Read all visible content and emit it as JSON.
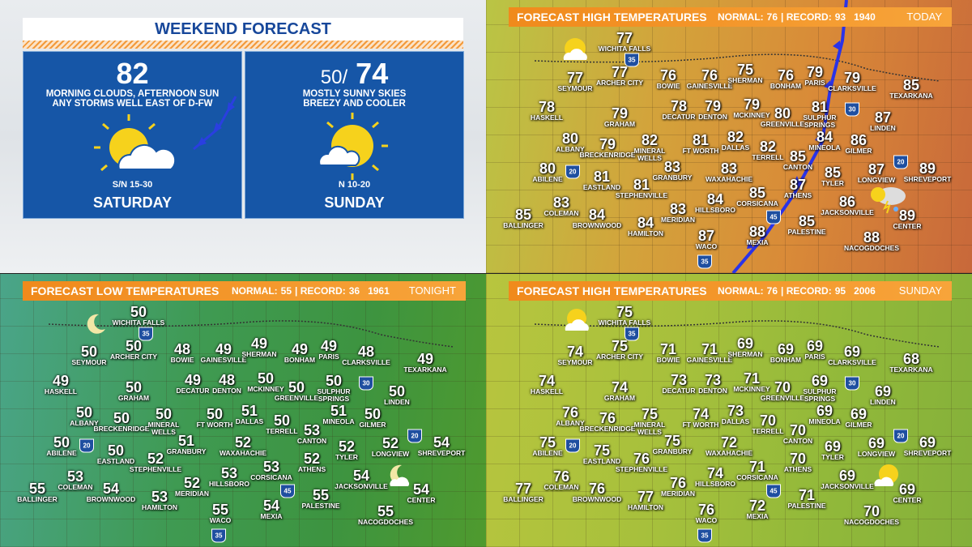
{
  "weekend": {
    "title": "WEEKEND FORECAST",
    "days": [
      {
        "high": 82,
        "description": "MORNING CLOUDS, AFTERNOON SUN\nANY STORMS WELL EAST OF D-FW",
        "wind": "S/N 15-30",
        "day": "SATURDAY"
      },
      {
        "low": 50,
        "separator": "/",
        "high": 74,
        "description": "MOSTLY SUNNY SKIES\nBREEZY AND COOLER",
        "wind": "N 10-20",
        "day": "SUNDAY"
      }
    ]
  },
  "cities": [
    "WICHITA FALLS",
    "SEYMOUR",
    "ARCHER CITY",
    "BOWIE",
    "GAINESVILLE",
    "SHERMAN",
    "BONHAM",
    "PARIS",
    "CLARKSVILLE",
    "TEXARKANA",
    "HASKELL",
    "GRAHAM",
    "DECATUR",
    "DENTON",
    "MCKINNEY",
    "GREENVILLE",
    "SULPHUR\nSPRINGS",
    "LINDEN",
    "ALBANY",
    "BRECKENRIDGE",
    "MINERAL\nWELLS",
    "FT WORTH",
    "DALLAS",
    "TERRELL",
    "MINEOLA",
    "GILMER",
    "CANTON",
    "ABILENE",
    "EASTLAND",
    "GRANBURY",
    "WAXAHACHIE",
    "STEPHENVILLE",
    "TYLER",
    "LONGVIEW",
    "SHREVEPORT",
    "ATHENS",
    "COLEMAN",
    "BROWNWOOD",
    "CORSICANA",
    "HILLSBORO",
    "MERIDIAN",
    "JACKSONVILLE",
    "CENTER",
    "BALLINGER",
    "HAMILTON",
    "PALESTINE",
    "WACO",
    "MEXIA",
    "NACOGDOCHES"
  ],
  "interstates": [
    "35",
    "30",
    "20",
    "20",
    "45",
    "35"
  ],
  "maps": [
    {
      "title": "FORECAST HIGH TEMPERATURES",
      "normal_label": "NORMAL:",
      "normal": 76,
      "record_label": "| RECORD:",
      "record": 93,
      "record_year": 1940,
      "period": "TODAY",
      "temps": [
        77,
        77,
        77,
        76,
        76,
        75,
        76,
        79,
        79,
        85,
        78,
        79,
        78,
        79,
        79,
        80,
        81,
        87,
        80,
        79,
        82,
        81,
        82,
        82,
        84,
        86,
        85,
        80,
        81,
        83,
        83,
        81,
        85,
        87,
        89,
        87,
        83,
        84,
        85,
        84,
        83,
        86,
        89,
        85,
        84,
        85,
        87,
        88,
        88
      ]
    },
    {
      "title": "FORECAST LOW TEMPERATURES",
      "normal_label": "NORMAL:",
      "normal": 55,
      "record_label": "| RECORD:",
      "record": 36,
      "record_year": 1961,
      "period": "TONIGHT",
      "temps": [
        50,
        50,
        50,
        48,
        49,
        49,
        49,
        49,
        48,
        49,
        49,
        50,
        49,
        48,
        50,
        50,
        50,
        50,
        50,
        50,
        50,
        50,
        51,
        50,
        51,
        50,
        53,
        50,
        50,
        51,
        52,
        52,
        52,
        52,
        54,
        52,
        53,
        54,
        53,
        53,
        52,
        54,
        54,
        55,
        53,
        55,
        55,
        54,
        55
      ]
    },
    {
      "title": "FORECAST HIGH TEMPERATURES",
      "normal_label": "NORMAL:",
      "normal": 76,
      "record_label": "| RECORD:",
      "record": 95,
      "record_year": 2006,
      "period": "SUNDAY",
      "temps": [
        75,
        74,
        75,
        71,
        71,
        69,
        69,
        69,
        69,
        68,
        74,
        74,
        73,
        73,
        71,
        70,
        69,
        69,
        76,
        76,
        75,
        74,
        73,
        70,
        69,
        69,
        70,
        75,
        75,
        75,
        72,
        76,
        69,
        69,
        69,
        70,
        76,
        76,
        71,
        74,
        76,
        69,
        69,
        77,
        77,
        71,
        76,
        72,
        70
      ]
    }
  ]
}
